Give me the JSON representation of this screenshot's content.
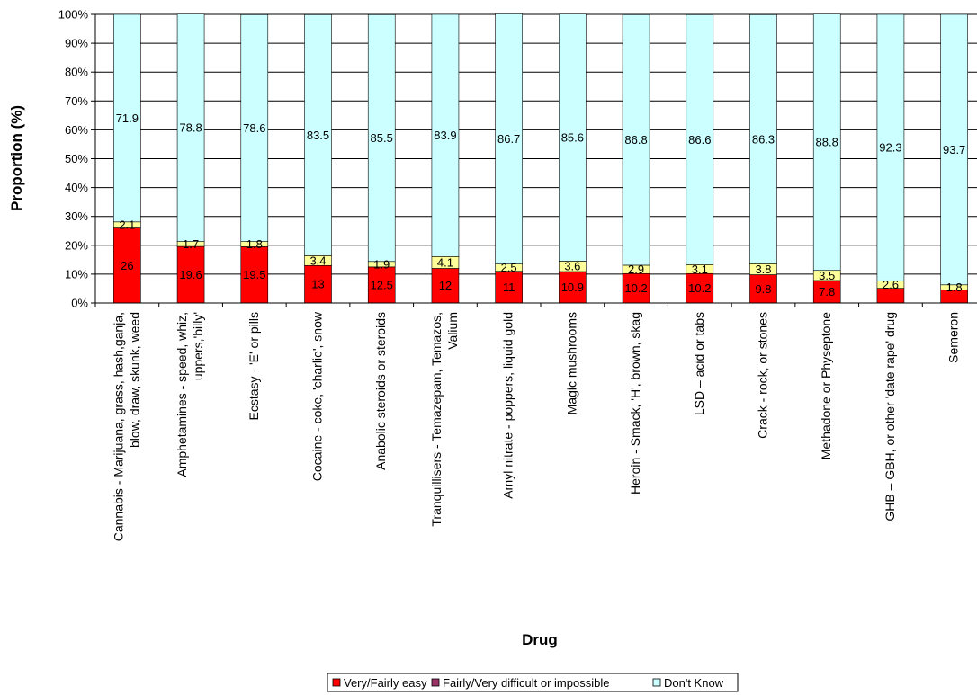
{
  "chart_data": {
    "type": "bar",
    "stacked": true,
    "percent_stacked": true,
    "xlabel": "Drug",
    "ylabel": "Proportion (%)",
    "ylim": [
      0,
      100
    ],
    "ytick_labels": [
      "0%",
      "10%",
      "20%",
      "30%",
      "40%",
      "50%",
      "60%",
      "70%",
      "80%",
      "90%",
      "100%"
    ],
    "grid": true,
    "legend_position": "bottom",
    "categories": [
      [
        "Cannabis - Marijuana, grass, hash,ganja,",
        "blow, draw, skunk, weed"
      ],
      [
        "Amphetamines - speed, whiz,",
        "uppers,'billy'"
      ],
      [
        "Ecstasy - 'E' or pills"
      ],
      [
        "Cocaine - coke, 'charlie', snow"
      ],
      [
        "Anabolic steroids or steroids"
      ],
      [
        "Tranquillisers - Temazepam, Temazos,",
        "Valium"
      ],
      [
        "Amyl nitrate - poppers, liquid gold"
      ],
      [
        "Magic mushrooms"
      ],
      [
        "Heroin - Smack, 'H', brown, skag"
      ],
      [
        "LSD – acid or tabs"
      ],
      [
        "Crack - rock, or stones"
      ],
      [
        "Methadone or Physeptone"
      ],
      [
        "GHB – GBH, or other 'date rape' drug"
      ],
      [
        "Semeron"
      ]
    ],
    "series": [
      {
        "name": "Very/Fairly easy",
        "color": "#ff0000",
        "values": [
          26,
          19.6,
          19.5,
          13,
          12.5,
          12,
          11,
          10.9,
          10.2,
          10.2,
          9.8,
          7.8,
          5.1,
          4.5
        ],
        "labels": [
          "26",
          "19.6",
          "19.5",
          "13",
          "12.5",
          "12",
          "11",
          "10.9",
          "10.2",
          "10.2",
          "9.8",
          "7.8",
          "",
          ""
        ]
      },
      {
        "name": "Fairly/Very difficult or impossible",
        "color": "#ffff99",
        "values": [
          2.1,
          1.7,
          1.8,
          3.4,
          1.9,
          4.1,
          2.5,
          3.6,
          2.9,
          3.1,
          3.8,
          3.5,
          2.6,
          1.8
        ],
        "labels": [
          "2.1",
          "1.7",
          "1.8",
          "3.4",
          "1.9",
          "4.1",
          "2.5",
          "3.6",
          "2.9",
          "3.1",
          "3.8",
          "3.5",
          "2.6",
          "1.8"
        ]
      },
      {
        "name": "Don't Know",
        "color": "#ccffff",
        "values": [
          71.9,
          78.8,
          78.6,
          83.5,
          85.5,
          83.9,
          86.7,
          85.6,
          86.8,
          86.6,
          86.3,
          88.8,
          92.3,
          93.7
        ],
        "labels": [
          "71.9",
          "78.8",
          "78.6",
          "83.5",
          "85.5",
          "83.9",
          "86.7",
          "85.6",
          "86.8",
          "86.6",
          "86.3",
          "88.8",
          "92.3",
          "93.7"
        ]
      }
    ],
    "legend": [
      {
        "label": "Very/Fairly easy",
        "color": "#ff0000"
      },
      {
        "label": "Fairly/Very difficult or impossible",
        "color": "#993366"
      },
      {
        "label": "Don't Know",
        "color": "#ccffff"
      }
    ]
  }
}
